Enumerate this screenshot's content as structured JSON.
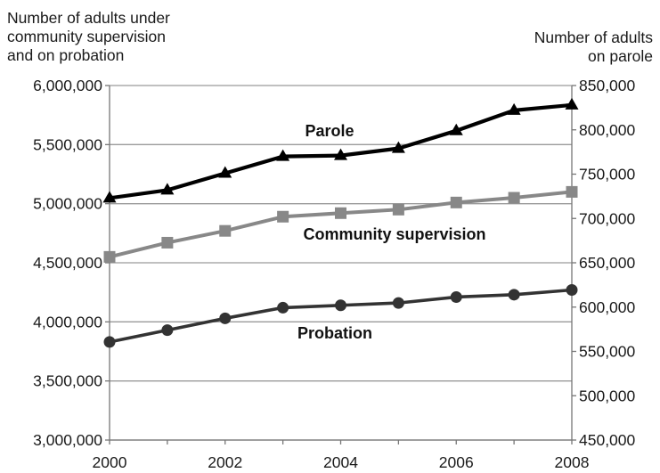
{
  "chart_data": {
    "type": "line",
    "y_left_label": "Number of adults under\ncommunity supervision\nand on probation",
    "y_right_label": "Number of adults\non parole",
    "x": [
      2000,
      2001,
      2002,
      2003,
      2004,
      2005,
      2006,
      2007,
      2008
    ],
    "x_ticks": [
      "2000",
      "2002",
      "2004",
      "2006",
      "2008"
    ],
    "y_left_ticks": [
      "3,000,000",
      "3,500,000",
      "4,000,000",
      "4,500,000",
      "5,000,000",
      "5,500,000",
      "6,000,000"
    ],
    "y_right_ticks": [
      "450,000",
      "500,000",
      "550,000",
      "600,000",
      "650,000",
      "700,000",
      "750,000",
      "800,000",
      "850,000"
    ],
    "ylim_left": [
      3000000,
      6000000
    ],
    "ylim_right": [
      450000,
      850000
    ],
    "grid": "horizontal",
    "series": [
      {
        "name": "Parole",
        "axis": "right",
        "marker": "triangle",
        "color": "#000000",
        "values": [
          723000,
          732000,
          751000,
          770000,
          771000,
          779000,
          799000,
          822000,
          828000
        ]
      },
      {
        "name": "Community supervision",
        "axis": "left",
        "marker": "square",
        "color": "#888888",
        "values": [
          4550000,
          4670000,
          4770000,
          4890000,
          4920000,
          4950000,
          5010000,
          5050000,
          5100000
        ]
      },
      {
        "name": "Probation",
        "axis": "left",
        "marker": "circle",
        "color": "#333333",
        "values": [
          3830000,
          3930000,
          4030000,
          4120000,
          4140000,
          4160000,
          4210000,
          4230000,
          4270000
        ]
      }
    ]
  }
}
